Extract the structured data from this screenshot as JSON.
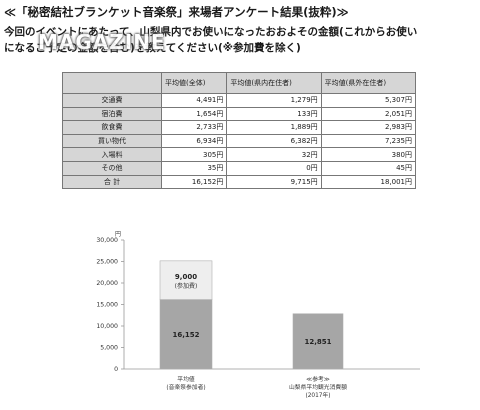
{
  "document": {
    "heading": "≪「秘密結社ブランケット音楽祭」来場者アンケート結果(抜粋)≫",
    "intro_lines": [
      "今回のイベントにあたって、山梨県内でお使いになったおおよその金額(これからお使い",
      "になるご予定の金額を含む)を教えてください(※参加費を除く)"
    ],
    "watermark": "MAGAZINE"
  },
  "table": {
    "headers": [
      "",
      "平均値(全体)",
      "平均値(県内在住者)",
      "平均値(県外在住者)"
    ],
    "rows": [
      {
        "label": "交通費",
        "values": [
          "4,491円",
          "1,279円",
          "5,307円"
        ]
      },
      {
        "label": "宿泊費",
        "values": [
          "1,654円",
          "133円",
          "2,051円"
        ]
      },
      {
        "label": "飲食費",
        "values": [
          "2,733円",
          "1,889円",
          "2,983円"
        ]
      },
      {
        "label": "買い物代",
        "values": [
          "6,934円",
          "6,382円",
          "7,235円"
        ]
      },
      {
        "label": "入場料",
        "values": [
          "305円",
          "32円",
          "380円"
        ]
      },
      {
        "label": "その他",
        "values": [
          "35円",
          "0円",
          "45円"
        ]
      },
      {
        "label": "合 計",
        "values": [
          "16,152円",
          "9,715円",
          "18,001円"
        ]
      }
    ]
  },
  "chart_data": {
    "type": "bar",
    "stacked": true,
    "unit_label": "円",
    "ylim": [
      0,
      30000
    ],
    "yticks": [
      "0",
      "5,000",
      "10,000",
      "15,000",
      "20,000",
      "25,000",
      "30,000"
    ],
    "ytick_values": [
      0,
      5000,
      10000,
      15000,
      20000,
      25000,
      30000
    ],
    "grid": false,
    "categories": [
      [
        "平均値",
        "(音楽祭参加者)"
      ],
      [
        "≪参考≫",
        "山梨県平均観光消費額",
        "(2017年)"
      ]
    ],
    "bars": [
      {
        "segments": [
          {
            "value": 16152,
            "label": "16,152",
            "sublabel": "",
            "color": "#a6a6a6"
          },
          {
            "value": 9000,
            "label": "9,000",
            "sublabel": "(参加費)",
            "color": "#eeeeee"
          }
        ]
      },
      {
        "segments": [
          {
            "value": 12851,
            "label": "12,851",
            "sublabel": "",
            "color": "#a6a6a6"
          }
        ]
      }
    ]
  }
}
